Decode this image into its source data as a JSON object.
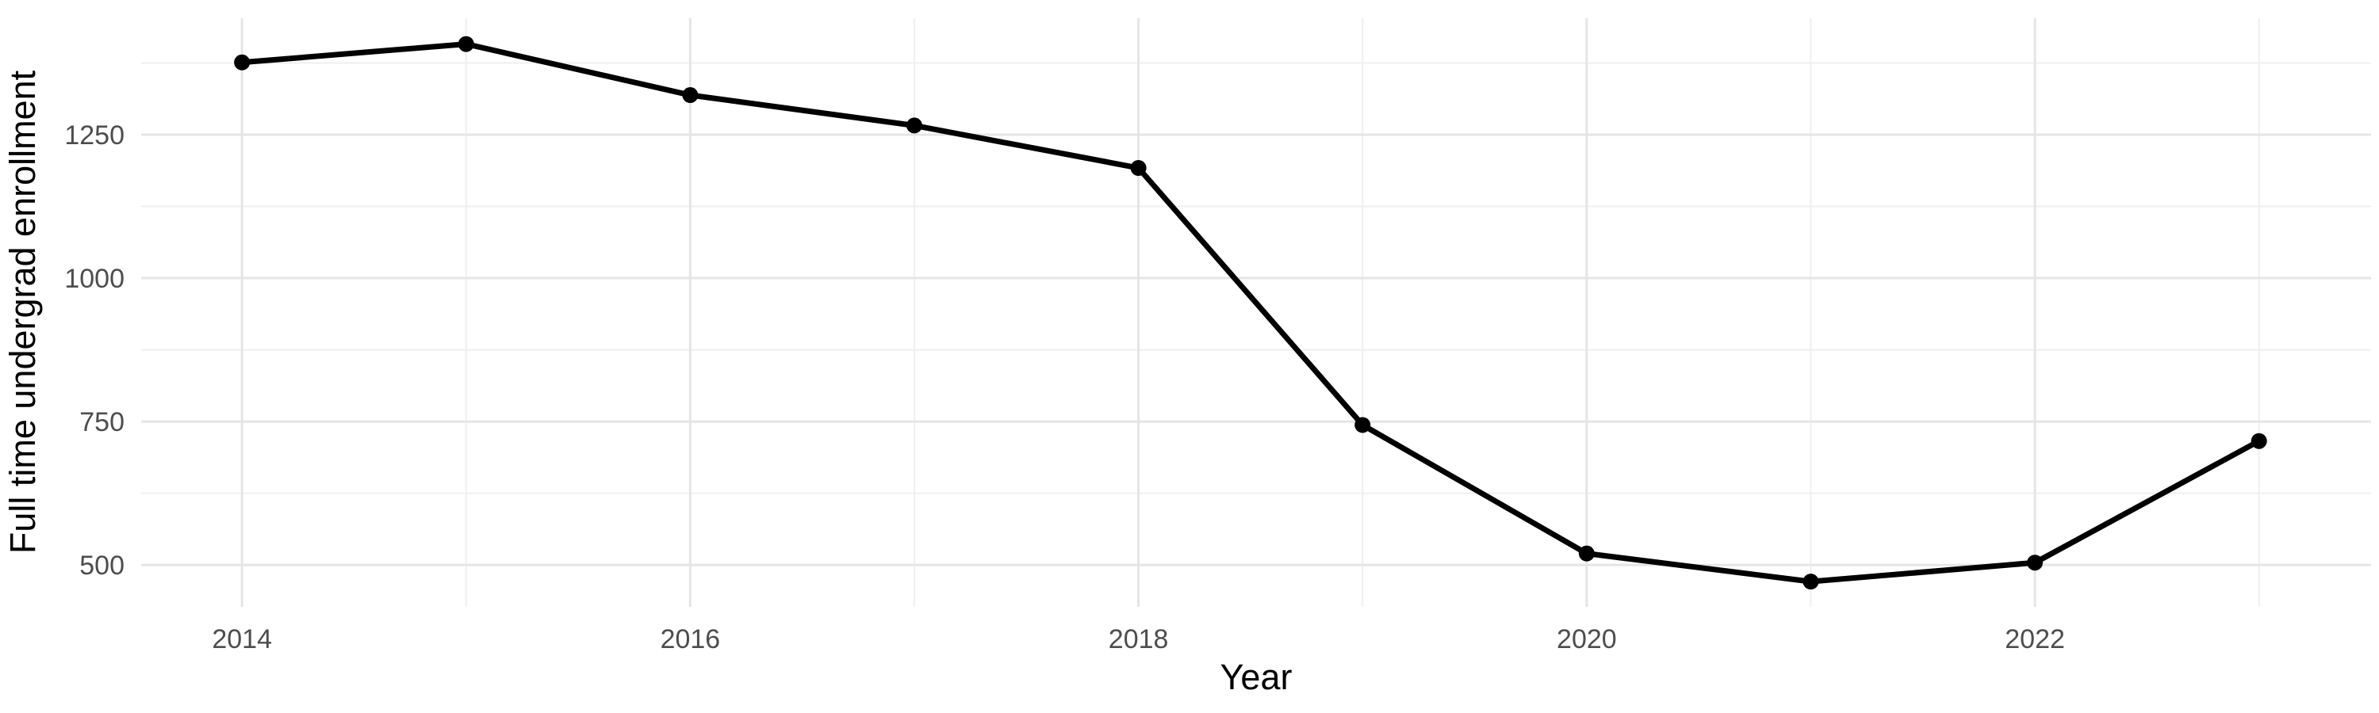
{
  "chart_data": {
    "type": "line",
    "title": "",
    "xlabel": "Year",
    "ylabel": "Full time undergrad enrollment",
    "x": [
      2014,
      2015,
      2016,
      2017,
      2018,
      2019,
      2020,
      2021,
      2022,
      2023
    ],
    "series": [
      {
        "name": "Full time undergrad enrollment",
        "values": [
          1376,
          1408,
          1319,
          1266,
          1192,
          744,
          520,
          471,
          504,
          716
        ]
      }
    ],
    "x_tick_labels": [
      "2014",
      "2016",
      "2018",
      "2020",
      "2022"
    ],
    "x_major_gridlines": [
      2014,
      2016,
      2018,
      2020,
      2022
    ],
    "x_minor_gridlines": [
      2015,
      2017,
      2019,
      2021,
      2023
    ],
    "y_tick_labels": [
      "500",
      "750",
      "1000",
      "1250"
    ],
    "y_major_gridlines": [
      500,
      750,
      1000,
      1250
    ],
    "y_minor_gridlines": [
      625,
      875,
      1125,
      1375
    ],
    "xlim": [
      2013.55,
      2023.5
    ],
    "ylim": [
      427,
      1453
    ],
    "grid": true,
    "legend_position": "none",
    "point_marker": "filled-circle",
    "colors": {
      "line": "#000000",
      "point": "#000000",
      "tick_label": "#4d4d4d",
      "axis_title": "#000000",
      "grid_major": "#e5e5e5",
      "grid_minor": "#efefef",
      "background": "#ffffff"
    }
  }
}
